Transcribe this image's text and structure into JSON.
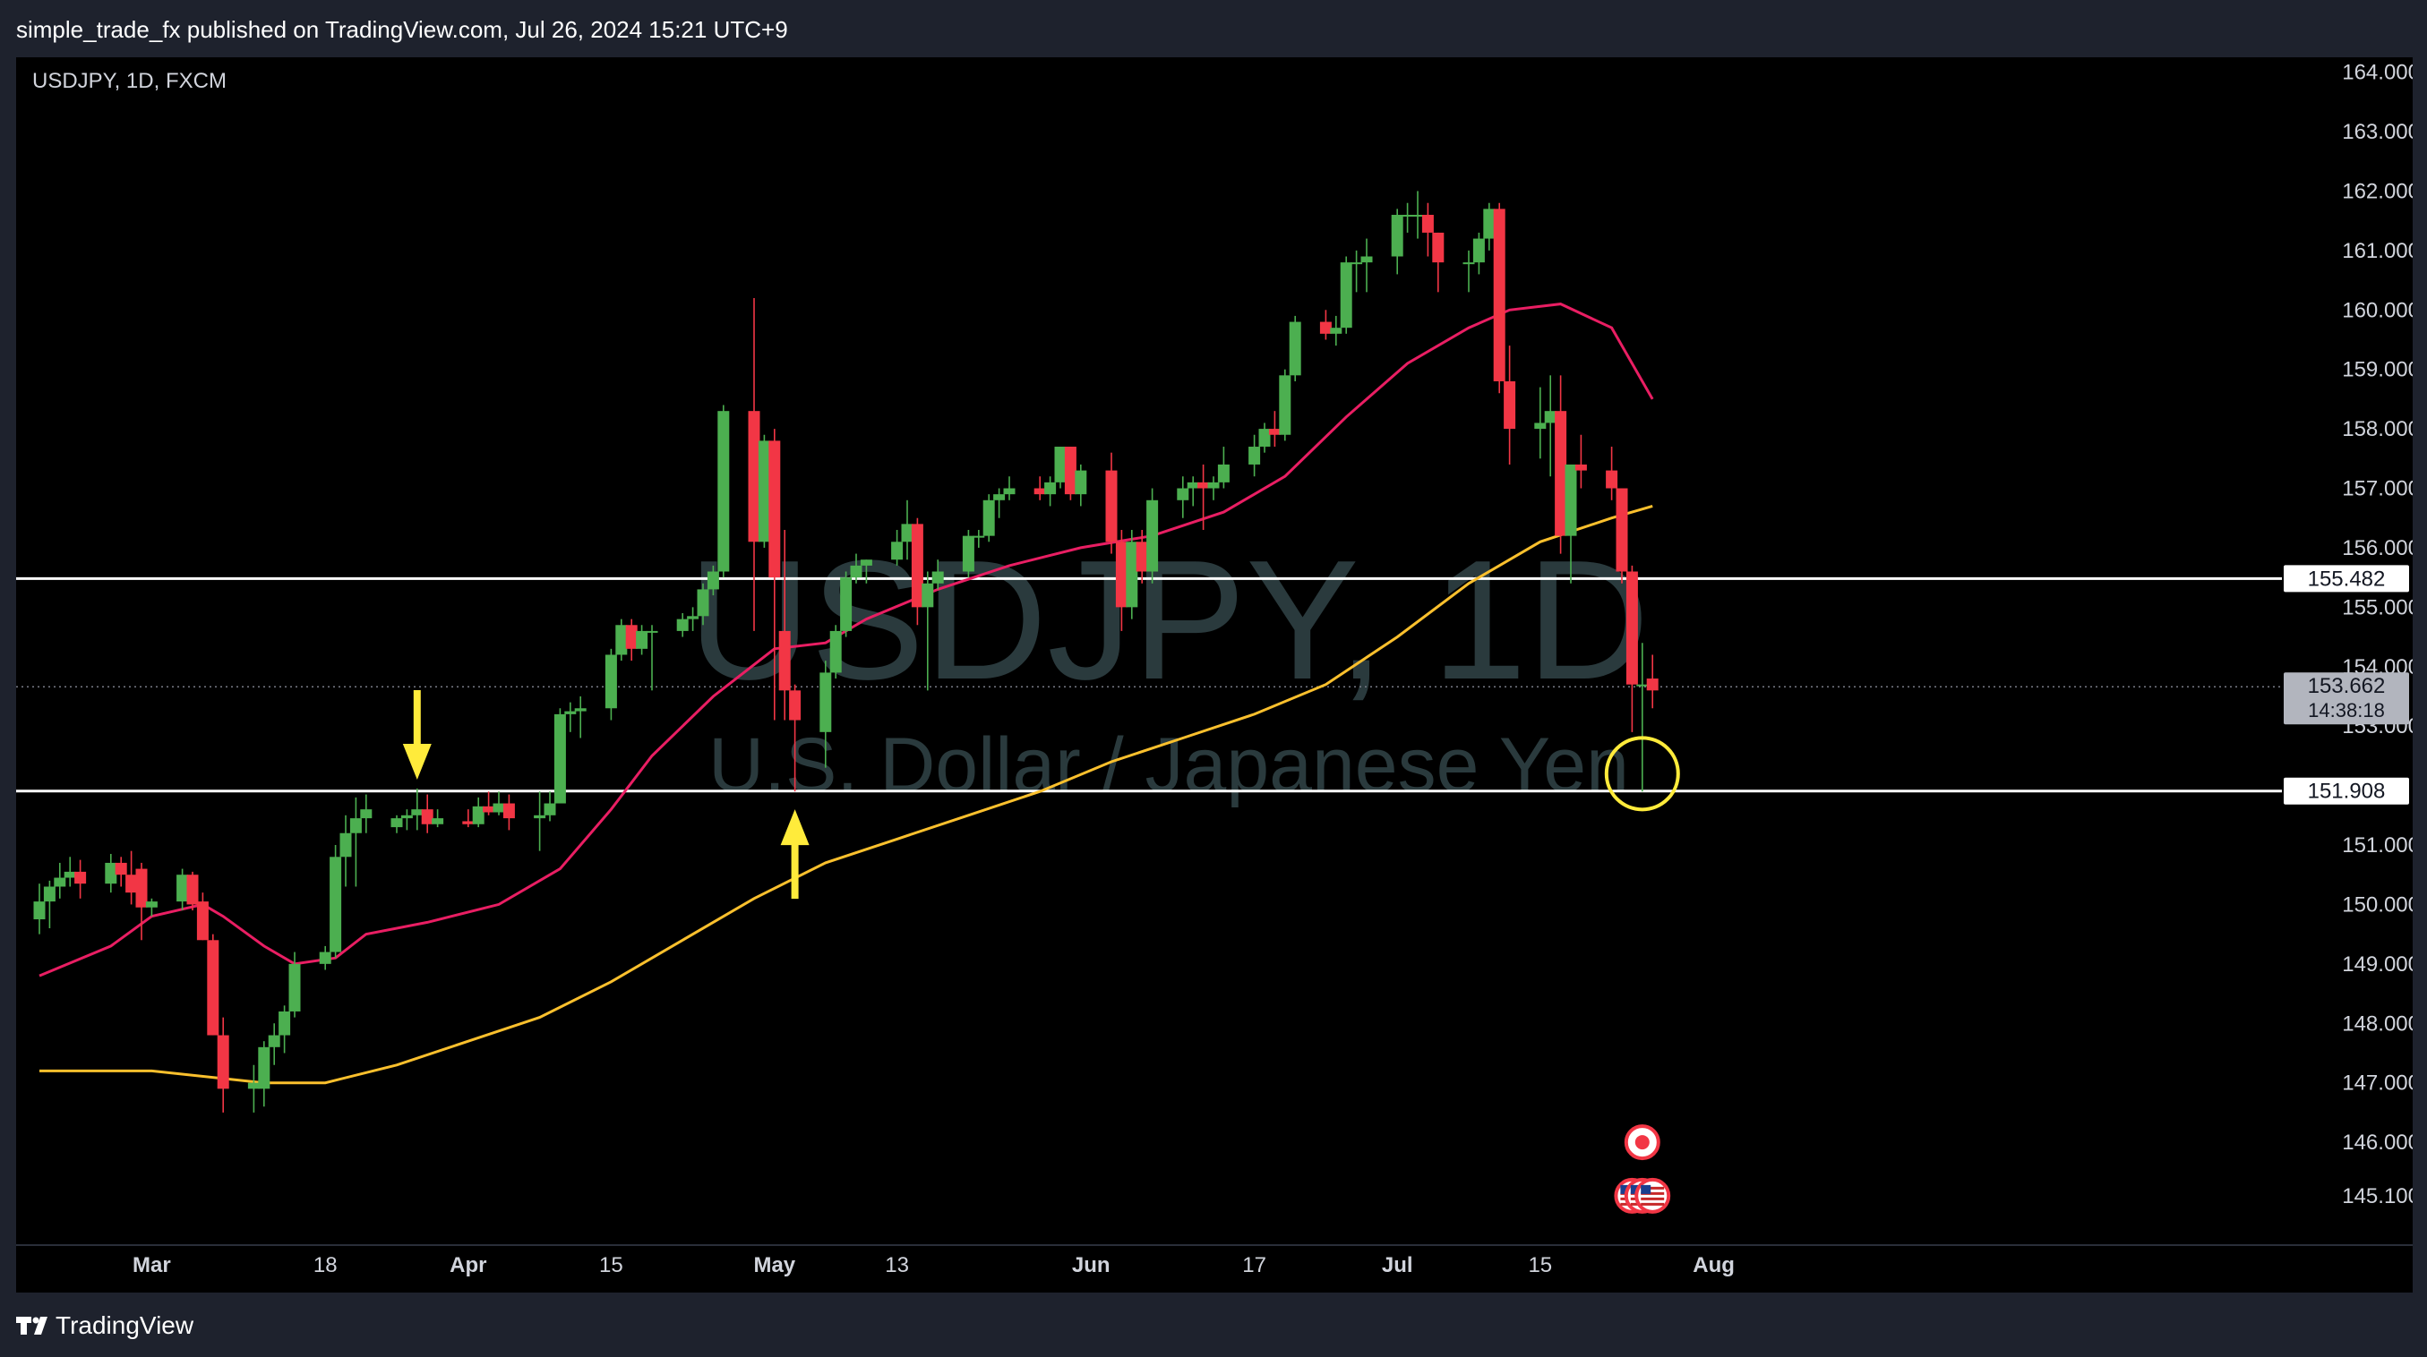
{
  "header": {
    "published": "simple_trade_fx published on TradingView.com, Jul 26, 2024 15:21 UTC+9"
  },
  "footer": {
    "brand": "TradingView"
  },
  "colors": {
    "up": "#4caf50",
    "down": "#f23645",
    "ema_fast": "#e91e63",
    "ema_slow": "#fbc02d",
    "annotation": "#ffeb3b",
    "level_line": "#ffffff",
    "watermark": "#2a3a3d"
  },
  "chart_data": {
    "type": "candlestick",
    "symbol_label": "USDJPY, 1D, FXCM",
    "watermark": {
      "line1": "USDJPY, 1D",
      "line2": "U.S. Dollar / Japanese Yen"
    },
    "ylim": [
      144.3,
      164.25
    ],
    "y_ticks": [
      "164.000",
      "163.000",
      "162.000",
      "161.000",
      "160.000",
      "159.000",
      "158.000",
      "157.000",
      "156.000",
      "155.000",
      "154.000",
      "153.000",
      "151.000",
      "150.000",
      "149.000",
      "148.000",
      "147.000",
      "146.000",
      "145.100"
    ],
    "x_ticks": [
      "Mar",
      "18",
      "Apr",
      "15",
      "May",
      "13",
      "Jun",
      "17",
      "Jul",
      "15",
      "Aug"
    ],
    "x_tick_dates": [
      "2024-03-01",
      "2024-03-18",
      "2024-04-01",
      "2024-04-15",
      "2024-05-01",
      "2024-05-13",
      "2024-06-01",
      "2024-06-17",
      "2024-07-01",
      "2024-07-15",
      "2024-08-01"
    ],
    "horizontal_levels": [
      155.482,
      151.908
    ],
    "price_labels": [
      {
        "price": 155.482,
        "text": "155.482",
        "style": "light"
      },
      {
        "price": 153.662,
        "text": "153.662",
        "sub": "14:38:18",
        "style": "current"
      },
      {
        "price": 151.908,
        "text": "151.908",
        "style": "light"
      }
    ],
    "current_price": 153.662,
    "candles": [
      [
        "2024-02-19",
        149.75,
        150.35,
        149.5,
        150.05
      ],
      [
        "2024-02-20",
        150.05,
        150.4,
        149.6,
        150.3
      ],
      [
        "2024-02-21",
        150.3,
        150.7,
        150.1,
        150.45
      ],
      [
        "2024-02-22",
        150.45,
        150.8,
        150.3,
        150.55
      ],
      [
        "2024-02-23",
        150.55,
        150.75,
        150.1,
        150.35
      ],
      [
        "2024-02-26",
        150.35,
        150.85,
        150.2,
        150.7
      ],
      [
        "2024-02-27",
        150.7,
        150.8,
        150.3,
        150.5
      ],
      [
        "2024-02-28",
        150.5,
        150.9,
        150.0,
        150.2
      ],
      [
        "2024-02-29",
        150.6,
        150.7,
        149.4,
        149.95
      ],
      [
        "2024-03-01",
        149.95,
        150.1,
        149.8,
        150.05
      ],
      [
        "2024-03-04",
        150.05,
        150.6,
        149.9,
        150.5
      ],
      [
        "2024-03-05",
        150.5,
        150.55,
        149.9,
        150.0
      ],
      [
        "2024-03-06",
        150.05,
        150.2,
        149.4,
        149.4
      ],
      [
        "2024-03-07",
        149.4,
        149.5,
        147.8,
        147.8
      ],
      [
        "2024-03-08",
        147.8,
        148.1,
        146.5,
        146.9
      ],
      [
        "2024-03-11",
        146.9,
        147.3,
        146.5,
        147.0
      ],
      [
        "2024-03-12",
        146.9,
        147.7,
        146.6,
        147.6
      ],
      [
        "2024-03-13",
        147.6,
        148.0,
        147.3,
        147.8
      ],
      [
        "2024-03-14",
        147.8,
        148.3,
        147.5,
        148.2
      ],
      [
        "2024-03-15",
        148.2,
        149.2,
        148.1,
        149.0
      ],
      [
        "2024-03-18",
        149.0,
        149.3,
        148.9,
        149.2
      ],
      [
        "2024-03-19",
        149.2,
        151.0,
        149.1,
        150.8
      ],
      [
        "2024-03-20",
        150.8,
        151.5,
        150.3,
        151.2
      ],
      [
        "2024-03-21",
        151.2,
        151.8,
        150.3,
        151.45
      ],
      [
        "2024-03-22",
        151.45,
        151.85,
        151.2,
        151.6
      ],
      [
        "2024-03-25",
        151.3,
        151.5,
        151.2,
        151.45
      ],
      [
        "2024-03-26",
        151.45,
        151.6,
        151.25,
        151.5
      ],
      [
        "2024-03-27",
        151.5,
        151.95,
        151.25,
        151.6
      ],
      [
        "2024-03-28",
        151.6,
        151.85,
        151.2,
        151.35
      ],
      [
        "2024-03-29",
        151.35,
        151.6,
        151.3,
        151.45
      ],
      [
        "2024-04-01",
        151.4,
        151.6,
        151.3,
        151.35
      ],
      [
        "2024-04-02",
        151.35,
        151.8,
        151.3,
        151.65
      ],
      [
        "2024-04-03",
        151.65,
        151.9,
        151.5,
        151.55
      ],
      [
        "2024-04-04",
        151.55,
        151.9,
        151.5,
        151.7
      ],
      [
        "2024-04-05",
        151.7,
        151.85,
        151.25,
        151.45
      ],
      [
        "2024-04-08",
        151.45,
        151.9,
        150.9,
        151.5
      ],
      [
        "2024-04-09",
        151.5,
        151.9,
        151.4,
        151.7
      ],
      [
        "2024-04-10",
        151.7,
        153.3,
        151.7,
        153.2
      ],
      [
        "2024-04-11",
        153.2,
        153.4,
        152.9,
        153.25
      ],
      [
        "2024-04-12",
        153.25,
        153.5,
        152.8,
        153.3
      ],
      [
        "2024-04-15",
        153.3,
        154.3,
        153.1,
        154.2
      ],
      [
        "2024-04-16",
        154.2,
        154.8,
        154.1,
        154.7
      ],
      [
        "2024-04-17",
        154.7,
        154.8,
        154.1,
        154.3
      ],
      [
        "2024-04-18",
        154.3,
        154.7,
        154.2,
        154.6
      ],
      [
        "2024-04-19",
        154.6,
        154.7,
        153.6,
        154.6
      ],
      [
        "2024-04-22",
        154.6,
        154.9,
        154.5,
        154.8
      ],
      [
        "2024-04-23",
        154.8,
        155.0,
        154.6,
        154.85
      ],
      [
        "2024-04-24",
        154.85,
        155.4,
        154.7,
        155.3
      ],
      [
        "2024-04-25",
        155.3,
        155.7,
        155.2,
        155.6
      ],
      [
        "2024-04-26",
        155.6,
        158.4,
        155.5,
        158.3
      ],
      [
        "2024-04-29",
        158.3,
        160.2,
        154.6,
        156.1
      ],
      [
        "2024-04-30",
        156.1,
        157.9,
        156.0,
        157.8
      ],
      [
        "2024-05-01",
        157.8,
        158.0,
        153.1,
        155.5
      ],
      [
        "2024-05-02",
        154.6,
        156.3,
        153.1,
        153.6
      ],
      [
        "2024-05-03",
        153.6,
        153.7,
        151.9,
        153.1
      ],
      [
        "2024-05-06",
        152.9,
        154.1,
        152.3,
        153.9
      ],
      [
        "2024-05-07",
        153.9,
        154.7,
        153.8,
        154.6
      ],
      [
        "2024-05-08",
        154.6,
        155.6,
        154.5,
        155.5
      ],
      [
        "2024-05-09",
        155.5,
        155.9,
        155.4,
        155.7
      ],
      [
        "2024-05-10",
        155.7,
        155.8,
        155.4,
        155.8
      ],
      [
        "2024-05-13",
        155.8,
        156.3,
        155.7,
        156.1
      ],
      [
        "2024-05-14",
        156.1,
        156.8,
        155.8,
        156.4
      ],
      [
        "2024-05-15",
        156.4,
        156.5,
        154.7,
        155.0
      ],
      [
        "2024-05-16",
        155.0,
        155.6,
        153.6,
        155.4
      ],
      [
        "2024-05-17",
        155.4,
        155.8,
        155.3,
        155.6
      ],
      [
        "2024-05-20",
        155.6,
        156.3,
        155.5,
        156.2
      ],
      [
        "2024-05-21",
        156.2,
        156.3,
        156.0,
        156.2
      ],
      [
        "2024-05-22",
        156.2,
        156.9,
        156.1,
        156.8
      ],
      [
        "2024-05-23",
        156.8,
        157.0,
        156.5,
        156.9
      ],
      [
        "2024-05-24",
        156.9,
        157.2,
        156.8,
        157.0
      ],
      [
        "2024-05-27",
        157.0,
        157.2,
        156.8,
        156.9
      ],
      [
        "2024-05-28",
        156.9,
        157.2,
        156.7,
        157.1
      ],
      [
        "2024-05-29",
        157.1,
        157.7,
        157.0,
        157.7
      ],
      [
        "2024-05-30",
        157.7,
        157.7,
        156.8,
        156.9
      ],
      [
        "2024-05-31",
        156.9,
        157.4,
        156.7,
        157.3
      ],
      [
        "2024-06-03",
        157.3,
        157.6,
        155.9,
        156.1
      ],
      [
        "2024-06-04",
        156.1,
        156.3,
        154.6,
        155.0
      ],
      [
        "2024-06-05",
        155.0,
        156.3,
        154.8,
        156.1
      ],
      [
        "2024-06-06",
        156.1,
        156.3,
        155.4,
        155.6
      ],
      [
        "2024-06-07",
        155.6,
        157.0,
        155.4,
        156.8
      ],
      [
        "2024-06-10",
        156.8,
        157.2,
        156.5,
        157.0
      ],
      [
        "2024-06-11",
        157.0,
        157.2,
        156.7,
        157.1
      ],
      [
        "2024-06-12",
        157.1,
        157.4,
        156.3,
        157.0
      ],
      [
        "2024-06-13",
        157.0,
        157.2,
        156.8,
        157.1
      ],
      [
        "2024-06-14",
        157.1,
        157.7,
        157.0,
        157.4
      ],
      [
        "2024-06-17",
        157.4,
        157.9,
        157.2,
        157.7
      ],
      [
        "2024-06-18",
        157.7,
        158.1,
        157.6,
        158.0
      ],
      [
        "2024-06-19",
        158.0,
        158.3,
        157.7,
        157.9
      ],
      [
        "2024-06-20",
        157.9,
        159.0,
        157.8,
        158.9
      ],
      [
        "2024-06-21",
        158.9,
        159.9,
        158.8,
        159.8
      ],
      [
        "2024-06-24",
        159.8,
        160.0,
        159.5,
        159.6
      ],
      [
        "2024-06-25",
        159.6,
        159.9,
        159.4,
        159.7
      ],
      [
        "2024-06-26",
        159.7,
        160.9,
        159.6,
        160.8
      ],
      [
        "2024-06-27",
        160.8,
        161.0,
        160.3,
        160.8
      ],
      [
        "2024-06-28",
        160.8,
        161.2,
        160.3,
        160.9
      ],
      [
        "2024-07-01",
        160.9,
        161.7,
        160.6,
        161.6
      ],
      [
        "2024-07-02",
        161.6,
        161.8,
        161.3,
        161.6
      ],
      [
        "2024-07-03",
        161.6,
        162.0,
        161.2,
        161.6
      ],
      [
        "2024-07-04",
        161.6,
        161.8,
        160.9,
        161.3
      ],
      [
        "2024-07-05",
        161.3,
        161.3,
        160.3,
        160.8
      ],
      [
        "2024-07-08",
        160.8,
        161.0,
        160.3,
        160.8
      ],
      [
        "2024-07-09",
        160.8,
        161.3,
        160.6,
        161.2
      ],
      [
        "2024-07-10",
        161.2,
        161.8,
        161.0,
        161.7
      ],
      [
        "2024-07-11",
        161.7,
        161.8,
        158.6,
        158.8
      ],
      [
        "2024-07-12",
        158.8,
        159.4,
        157.4,
        158.0
      ],
      [
        "2024-07-15",
        158.0,
        158.7,
        157.5,
        158.1
      ],
      [
        "2024-07-16",
        158.1,
        158.9,
        157.2,
        158.3
      ],
      [
        "2024-07-17",
        158.3,
        158.9,
        155.9,
        156.2
      ],
      [
        "2024-07-18",
        156.2,
        157.4,
        155.4,
        157.4
      ],
      [
        "2024-07-19",
        157.4,
        157.9,
        157.0,
        157.3
      ],
      [
        "2024-07-22",
        157.3,
        157.7,
        156.8,
        157.0
      ],
      [
        "2024-07-23",
        157.0,
        157.0,
        155.4,
        155.6
      ],
      [
        "2024-07-24",
        155.6,
        155.7,
        152.9,
        153.7
      ],
      [
        "2024-07-25",
        153.7,
        154.4,
        151.9,
        153.7
      ],
      [
        "2024-07-26",
        153.8,
        154.2,
        153.3,
        153.6
      ]
    ],
    "ema_fast": [
      [
        "2024-02-19",
        148.8
      ],
      [
        "2024-02-26",
        149.3
      ],
      [
        "2024-03-01",
        149.8
      ],
      [
        "2024-03-06",
        150.0
      ],
      [
        "2024-03-08",
        149.8
      ],
      [
        "2024-03-12",
        149.3
      ],
      [
        "2024-03-15",
        149.0
      ],
      [
        "2024-03-19",
        149.1
      ],
      [
        "2024-03-22",
        149.5
      ],
      [
        "2024-03-28",
        149.7
      ],
      [
        "2024-04-04",
        150.0
      ],
      [
        "2024-04-10",
        150.6
      ],
      [
        "2024-04-15",
        151.6
      ],
      [
        "2024-04-19",
        152.5
      ],
      [
        "2024-04-25",
        153.5
      ],
      [
        "2024-05-01",
        154.3
      ],
      [
        "2024-05-06",
        154.4
      ],
      [
        "2024-05-10",
        154.8
      ],
      [
        "2024-05-17",
        155.3
      ],
      [
        "2024-05-24",
        155.7
      ],
      [
        "2024-05-31",
        156.0
      ],
      [
        "2024-06-07",
        156.2
      ],
      [
        "2024-06-14",
        156.6
      ],
      [
        "2024-06-20",
        157.2
      ],
      [
        "2024-06-26",
        158.2
      ],
      [
        "2024-07-02",
        159.1
      ],
      [
        "2024-07-08",
        159.7
      ],
      [
        "2024-07-12",
        160.0
      ],
      [
        "2024-07-17",
        160.1
      ],
      [
        "2024-07-22",
        159.7
      ],
      [
        "2024-07-26",
        158.5
      ]
    ],
    "ema_slow": [
      [
        "2024-02-19",
        147.2
      ],
      [
        "2024-03-01",
        147.2
      ],
      [
        "2024-03-12",
        147.0
      ],
      [
        "2024-03-18",
        147.0
      ],
      [
        "2024-03-25",
        147.3
      ],
      [
        "2024-04-01",
        147.7
      ],
      [
        "2024-04-08",
        148.1
      ],
      [
        "2024-04-15",
        148.7
      ],
      [
        "2024-04-22",
        149.4
      ],
      [
        "2024-04-29",
        150.1
      ],
      [
        "2024-05-06",
        150.7
      ],
      [
        "2024-05-13",
        151.1
      ],
      [
        "2024-05-20",
        151.5
      ],
      [
        "2024-05-27",
        151.9
      ],
      [
        "2024-06-03",
        152.4
      ],
      [
        "2024-06-10",
        152.8
      ],
      [
        "2024-06-17",
        153.2
      ],
      [
        "2024-06-24",
        153.7
      ],
      [
        "2024-07-01",
        154.5
      ],
      [
        "2024-07-08",
        155.4
      ],
      [
        "2024-07-15",
        156.1
      ],
      [
        "2024-07-22",
        156.5
      ],
      [
        "2024-07-26",
        156.7
      ]
    ],
    "annotations": [
      {
        "type": "arrow-down",
        "date": "2024-03-27",
        "price": 152.1
      },
      {
        "type": "arrow-up",
        "date": "2024-05-03",
        "price": 151.6
      },
      {
        "type": "circle",
        "date": "2024-07-25",
        "price": 152.2
      }
    ],
    "event_markers": [
      {
        "type": "jp-flag",
        "date": "2024-07-25",
        "price": 146.0
      },
      {
        "type": "us-flag",
        "date": "2024-07-24",
        "price": 145.1
      },
      {
        "type": "us-flag",
        "date": "2024-07-25",
        "price": 145.1
      },
      {
        "type": "us-flag",
        "date": "2024-07-26",
        "price": 145.1
      }
    ]
  }
}
